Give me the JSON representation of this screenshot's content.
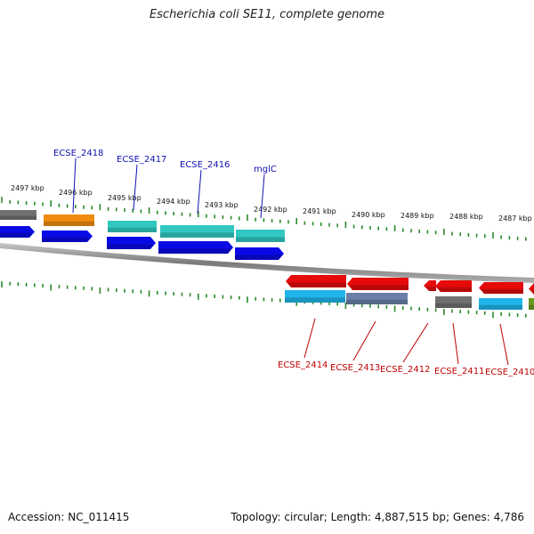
{
  "title": "Escherichia coli SE11, complete genome",
  "footer": {
    "accession": "Accession: NC_011415",
    "stats": "Topology: circular; Length: 4,887,515 bp; Genes: 4,786"
  },
  "colors": {
    "ticks": "#2a8a2a",
    "backbone": "#808080",
    "forward_cds": "#0a0ae6",
    "reverse_cds": "#e60a0a",
    "gene_cyan": "#30c8c0",
    "gene_orange": "#f08c10",
    "gene_gray": "#707070",
    "gene_lightblue": "#20b4e8",
    "gene_olive": "#6a9a20",
    "label_top": "#1010b0",
    "label_bottom": "#c00000"
  },
  "scale_labels": [
    "2497 kbp",
    "2496 kbp",
    "2495 kbp",
    "2494 kbp",
    "2493 kbp",
    "2492 kbp",
    "2491 kbp",
    "2490 kbp",
    "2489 kbp",
    "2488 kbp",
    "2487 kbp"
  ],
  "gene_labels_top": [
    "ECSE_2418",
    "ECSE_2417",
    "ECSE_2416",
    "mglC"
  ],
  "gene_labels_bottom": [
    "ECSE_2414",
    "ECSE_2413",
    "ECSE_2412",
    "ECSE_2411",
    "ECSE_2410"
  ]
}
